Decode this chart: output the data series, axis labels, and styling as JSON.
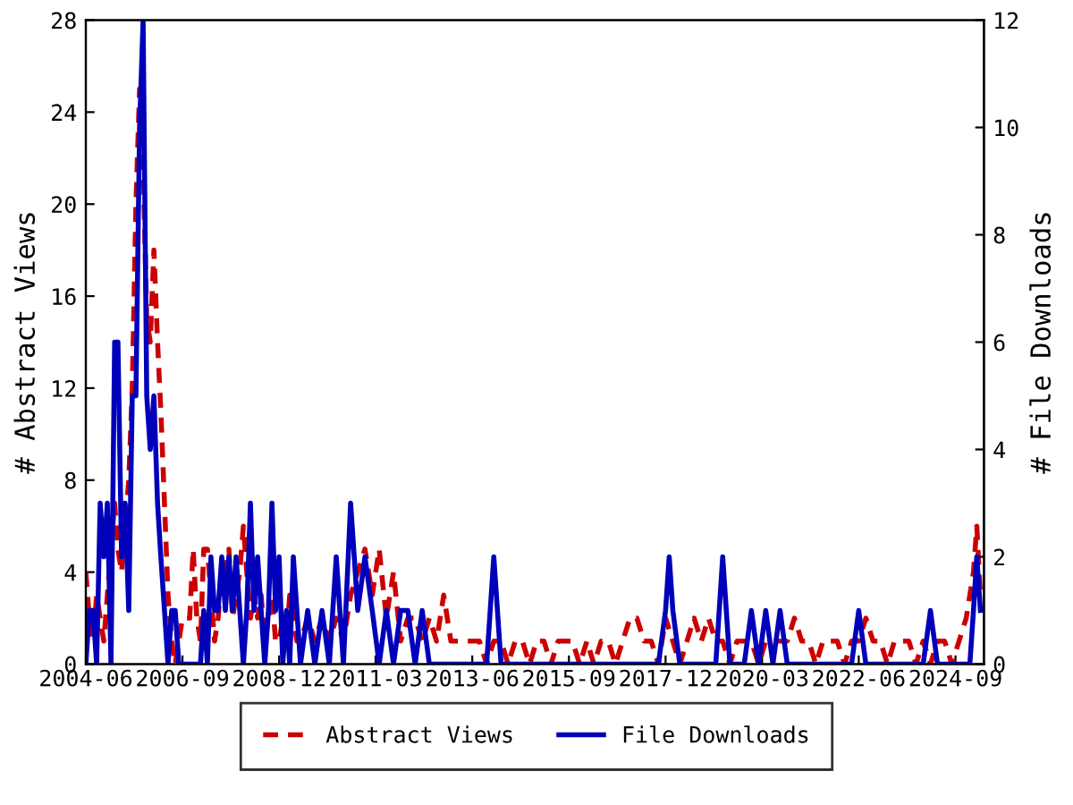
{
  "chart_data": {
    "type": "line",
    "xlabel": null,
    "ylabel": "# Abstract Views",
    "y2label": "# File Downloads",
    "xlim": [
      "2004-06",
      "2025-05"
    ],
    "xticks": [
      "2004-06",
      "2006-09",
      "2008-12",
      "2011-03",
      "2013-06",
      "2015-09",
      "2017-12",
      "2020-03",
      "2022-06",
      "2024-09"
    ],
    "ylim": [
      0,
      28
    ],
    "yticks": [
      0,
      4,
      8,
      12,
      16,
      20,
      24,
      28
    ],
    "y2lim": [
      0,
      12
    ],
    "y2ticks": [
      0,
      2,
      4,
      6,
      8,
      10,
      12
    ],
    "legend": "bottom",
    "grid": false,
    "series": [
      {
        "name": "Abstract Views",
        "color": "#cc0000",
        "line_style": "dashed",
        "axis": "y",
        "x": [
          "2004-06",
          "2004-07",
          "2004-08",
          "2004-09",
          "2004-10",
          "2004-11",
          "2004-12",
          "2005-01",
          "2005-02",
          "2005-03",
          "2005-04",
          "2005-05",
          "2005-06",
          "2005-07",
          "2005-08",
          "2005-09",
          "2005-10",
          "2005-11",
          "2005-12",
          "2006-01",
          "2006-02",
          "2006-03",
          "2006-04",
          "2006-05",
          "2006-06",
          "2006-07",
          "2006-08",
          "2006-09",
          "2006-10",
          "2006-11",
          "2006-12",
          "2007-01",
          "2007-02",
          "2007-03",
          "2007-04",
          "2007-05",
          "2007-06",
          "2007-07",
          "2007-08",
          "2007-09",
          "2007-10",
          "2007-11",
          "2007-12",
          "2008-01",
          "2008-02",
          "2008-03",
          "2008-04",
          "2008-05",
          "2008-06",
          "2008-07",
          "2008-08",
          "2008-09",
          "2008-10",
          "2008-11",
          "2008-12",
          "2009-01",
          "2009-02",
          "2009-03",
          "2009-04",
          "2009-05",
          "2009-06",
          "2009-08",
          "2009-10",
          "2009-12",
          "2010-02",
          "2010-04",
          "2010-06",
          "2010-08",
          "2010-10",
          "2010-12",
          "2011-02",
          "2011-04",
          "2011-06",
          "2011-08",
          "2011-10",
          "2011-12",
          "2012-02",
          "2012-04",
          "2012-06",
          "2012-08",
          "2012-10",
          "2012-12",
          "2013-02",
          "2013-04",
          "2013-06",
          "2013-08",
          "2013-10",
          "2013-12",
          "2014-02",
          "2014-04",
          "2014-06",
          "2014-08",
          "2014-10",
          "2014-12",
          "2015-02",
          "2015-04",
          "2015-06",
          "2015-08",
          "2015-10",
          "2015-12",
          "2016-02",
          "2016-04",
          "2016-06",
          "2016-08",
          "2016-10",
          "2016-12",
          "2017-02",
          "2017-04",
          "2017-06",
          "2017-08",
          "2017-10",
          "2017-12",
          "2018-02",
          "2018-04",
          "2018-06",
          "2018-08",
          "2018-10",
          "2018-12",
          "2019-02",
          "2019-04",
          "2019-06",
          "2019-08",
          "2019-10",
          "2019-12",
          "2020-02",
          "2020-04",
          "2020-06",
          "2020-08",
          "2020-10",
          "2020-12",
          "2021-02",
          "2021-04",
          "2021-06",
          "2021-08",
          "2021-10",
          "2021-12",
          "2022-02",
          "2022-04",
          "2022-06",
          "2022-08",
          "2022-10",
          "2022-12",
          "2023-02",
          "2023-04",
          "2023-06",
          "2023-08",
          "2023-10",
          "2023-12",
          "2024-02",
          "2024-04",
          "2024-06",
          "2024-08",
          "2024-10",
          "2024-12",
          "2025-02",
          "2025-03",
          "2025-04"
        ],
        "values": [
          4,
          2,
          1,
          3,
          2,
          1,
          3,
          5,
          7,
          5,
          4,
          6,
          8,
          12,
          20,
          25,
          22,
          15,
          14,
          18,
          14,
          11,
          7,
          3,
          1,
          0,
          1,
          2,
          2,
          2,
          5,
          2,
          1,
          5,
          5,
          3,
          1,
          2,
          4,
          4,
          5,
          2,
          3,
          4,
          6,
          4,
          2,
          3,
          2,
          3,
          1,
          2,
          3,
          1,
          1,
          2,
          1,
          3,
          2,
          1,
          1,
          2,
          1,
          2,
          1,
          2,
          1,
          3,
          4,
          5,
          3,
          5,
          2,
          4,
          1,
          2,
          2,
          1,
          2,
          1,
          3,
          1,
          1,
          1,
          1,
          1,
          0,
          1,
          1,
          0,
          1,
          1,
          0,
          1,
          1,
          0,
          1,
          1,
          1,
          0,
          1,
          0,
          1,
          1,
          0,
          1,
          2,
          2,
          1,
          1,
          0,
          2,
          1,
          0,
          1,
          2,
          1,
          2,
          1,
          1,
          0,
          1,
          1,
          1,
          0,
          1,
          1,
          1,
          1,
          2,
          1,
          1,
          0,
          1,
          1,
          1,
          0,
          1,
          1,
          2,
          1,
          1,
          0,
          1,
          1,
          1,
          0,
          1,
          0,
          1,
          1,
          0,
          1,
          2,
          4,
          6,
          3
        ]
      },
      {
        "name": "File Downloads",
        "color": "#0000bb",
        "line_style": "solid",
        "axis": "y2",
        "x": [
          "2004-06",
          "2004-07",
          "2004-08",
          "2004-09",
          "2004-10",
          "2004-11",
          "2004-12",
          "2005-01",
          "2005-02",
          "2005-03",
          "2005-04",
          "2005-05",
          "2005-06",
          "2005-07",
          "2005-08",
          "2005-09",
          "2005-10",
          "2005-11",
          "2005-12",
          "2006-01",
          "2006-02",
          "2006-03",
          "2006-04",
          "2006-05",
          "2006-06",
          "2006-07",
          "2006-08",
          "2006-09",
          "2006-10",
          "2006-11",
          "2006-12",
          "2007-01",
          "2007-02",
          "2007-03",
          "2007-04",
          "2007-05",
          "2007-06",
          "2007-07",
          "2007-08",
          "2007-09",
          "2007-10",
          "2007-11",
          "2007-12",
          "2008-01",
          "2008-02",
          "2008-03",
          "2008-04",
          "2008-05",
          "2008-06",
          "2008-07",
          "2008-08",
          "2008-09",
          "2008-10",
          "2008-11",
          "2008-12",
          "2009-01",
          "2009-02",
          "2009-03",
          "2009-04",
          "2009-05",
          "2009-06",
          "2009-08",
          "2009-10",
          "2009-12",
          "2010-02",
          "2010-04",
          "2010-06",
          "2010-08",
          "2010-09",
          "2010-10",
          "2010-12",
          "2011-02",
          "2011-04",
          "2011-06",
          "2011-08",
          "2011-10",
          "2011-12",
          "2012-02",
          "2012-04",
          "2012-06",
          "2013-10",
          "2013-12",
          "2014-02",
          "2016-02",
          "2017-10",
          "2017-12",
          "2018-01",
          "2018-02",
          "2018-04",
          "2019-02",
          "2019-04",
          "2019-06",
          "2019-10",
          "2019-12",
          "2020-02",
          "2020-04",
          "2020-06",
          "2020-08",
          "2020-10",
          "2022-04",
          "2022-06",
          "2022-08",
          "2023-12",
          "2024-02",
          "2024-04",
          "2025-01",
          "2025-02",
          "2025-03",
          "2025-04"
        ],
        "values": [
          0,
          1,
          1,
          0,
          3,
          2,
          3,
          0,
          6,
          6,
          2,
          3,
          1,
          5,
          5,
          10,
          12,
          5,
          4,
          5,
          3,
          2,
          1,
          0,
          1,
          1,
          0,
          0,
          0,
          0,
          0,
          0,
          0,
          1,
          0,
          2,
          1,
          1,
          2,
          1,
          2,
          1,
          2,
          1,
          0,
          1,
          3,
          1,
          2,
          1,
          0,
          1,
          3,
          1,
          2,
          0,
          1,
          0,
          2,
          1,
          0,
          1,
          0,
          1,
          0,
          2,
          0,
          3,
          2,
          1,
          2,
          1,
          0,
          1,
          0,
          1,
          1,
          0,
          1,
          0,
          0,
          2,
          0,
          0,
          0,
          1,
          2,
          1,
          0,
          0,
          2,
          0,
          0,
          1,
          0,
          1,
          0,
          1,
          0,
          0,
          1,
          0,
          0,
          1,
          0,
          0,
          1,
          2,
          1
        ]
      }
    ]
  }
}
